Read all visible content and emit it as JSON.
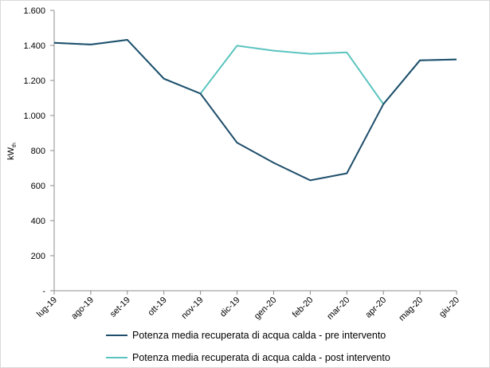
{
  "chart_data": {
    "type": "line",
    "categories": [
      "lug-19",
      "ago-19",
      "set-19",
      "ott-19",
      "nov-19",
      "dic-19",
      "gen-20",
      "feb-20",
      "mar-20",
      "apr-20",
      "mag-20",
      "giu-20"
    ],
    "series": [
      {
        "name": "Potenza media recuperata di acqua calda - pre intervento",
        "color": "#1f4e6b",
        "values": [
          1415,
          1405,
          1432,
          1210,
          1125,
          845,
          730,
          630,
          670,
          1065,
          1315,
          1320
        ]
      },
      {
        "name": "Potenza media recuperata di acqua calda - post intervento",
        "color": "#5bc4bf",
        "values": [
          1415,
          1405,
          1432,
          1210,
          1125,
          1398,
          1370,
          1352,
          1360,
          1065,
          1315,
          1320
        ]
      }
    ],
    "ylabel_main": "kW",
    "ylabel_sub": "th",
    "ylim": [
      0,
      1600
    ],
    "yticks": [
      {
        "value": 0,
        "label": "-"
      },
      {
        "value": 200,
        "label": "200"
      },
      {
        "value": 400,
        "label": "400"
      },
      {
        "value": 600,
        "label": "600"
      },
      {
        "value": 800,
        "label": "800"
      },
      {
        "value": 1000,
        "label": "1.000"
      },
      {
        "value": 1200,
        "label": "1.200"
      },
      {
        "value": 1400,
        "label": "1.400"
      },
      {
        "value": 1600,
        "label": "1.600"
      }
    ],
    "grid": false,
    "legend_position": "bottom"
  }
}
